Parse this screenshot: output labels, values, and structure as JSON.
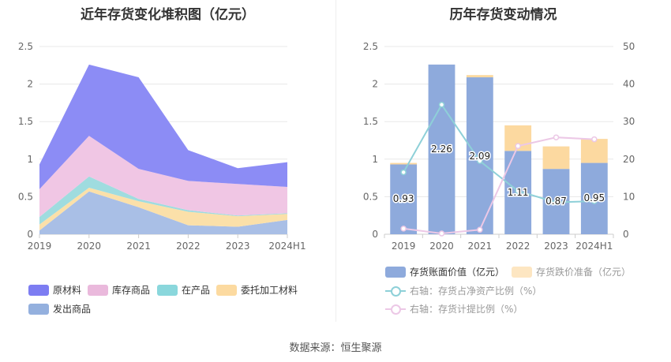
{
  "titles": {
    "left": "近年存货变化堆积图（亿元）",
    "right": "历年存货变动情况"
  },
  "source": "数据来源：恒生聚源",
  "colors": {
    "raw": "#8c8cf5",
    "stock": "#f0c6e4",
    "wip": "#9fdcdf",
    "outsource": "#fbe0a9",
    "shipped": "#a9bfe6",
    "book_value": "#8eaadc",
    "provision": "#fcd9a0",
    "ratio_net_assets": "#8ed0d8",
    "provision_ratio": "#ecc8e6"
  },
  "legend_left": [
    {
      "label": "原材料",
      "color": "#7d7df2"
    },
    {
      "label": "库存商品",
      "color": "#eab9dc"
    },
    {
      "label": "在产品",
      "color": "#8ad7dc"
    },
    {
      "label": "委托加工材料",
      "color": "#fcdaa0"
    },
    {
      "label": "发出商品",
      "color": "#94b0de"
    }
  ],
  "legend_right": {
    "book_value": "存货账面价值（亿元）",
    "provision": "存货跌价准备（亿元）",
    "line1": "右轴：存货占净资产比例（%）",
    "line2": "右轴：存货计提比例（%）"
  },
  "chart_data": [
    {
      "type": "area",
      "title": "近年存货变化堆积图（亿元）",
      "categories": [
        "2019",
        "2020",
        "2021",
        "2022",
        "2023",
        "2024H1"
      ],
      "ylim": [
        0,
        2.5
      ],
      "yticks": [
        "0",
        "0.5",
        "1",
        "1.5",
        "2",
        "2.5"
      ],
      "grid": true,
      "legend_position": "bottom",
      "stacked": true,
      "series": [
        {
          "name": "发出商品",
          "values": [
            0.05,
            0.57,
            0.36,
            0.12,
            0.1,
            0.19
          ]
        },
        {
          "name": "委托加工材料",
          "values": [
            0.08,
            0.05,
            0.08,
            0.18,
            0.14,
            0.08
          ]
        },
        {
          "name": "在产品",
          "values": [
            0.1,
            0.15,
            0.03,
            0.02,
            0.01,
            0.01
          ]
        },
        {
          "name": "库存商品",
          "values": [
            0.37,
            0.54,
            0.4,
            0.39,
            0.42,
            0.35
          ]
        },
        {
          "name": "原材料",
          "values": [
            0.33,
            0.95,
            1.22,
            0.41,
            0.21,
            0.33
          ]
        }
      ]
    },
    {
      "type": "bar",
      "title": "历年存货变动情况",
      "categories": [
        "2019",
        "2020",
        "2021",
        "2022",
        "2023",
        "2024H1"
      ],
      "ylim": [
        0,
        2.5
      ],
      "yticks": [
        "0",
        "0.5",
        "1",
        "1.5",
        "2",
        "2.5"
      ],
      "y2lim": [
        0,
        50
      ],
      "y2ticks": [
        "0",
        "10",
        "20",
        "30",
        "40",
        "50"
      ],
      "grid": true,
      "legend_position": "bottom",
      "stacked": true,
      "series": [
        {
          "name": "存货账面价值（亿元）",
          "values": [
            0.93,
            2.26,
            2.09,
            1.11,
            0.87,
            0.95
          ],
          "labels": [
            "0.93",
            "2.26",
            "2.09",
            "1.11",
            "0.87",
            "0.95"
          ]
        },
        {
          "name": "存货跌价准备（亿元）",
          "values": [
            0.02,
            0.0,
            0.03,
            0.34,
            0.3,
            0.32
          ]
        }
      ],
      "line_series": [
        {
          "name": "右轴：存货占净资产比例（%）",
          "axis": "right",
          "values": [
            16.5,
            34.5,
            19.5,
            11.5,
            8.5,
            8.8
          ]
        },
        {
          "name": "右轴：存货计提比例（%）",
          "axis": "right",
          "values": [
            1.5,
            0.2,
            1.2,
            23.5,
            25.8,
            25.3
          ]
        }
      ]
    }
  ]
}
